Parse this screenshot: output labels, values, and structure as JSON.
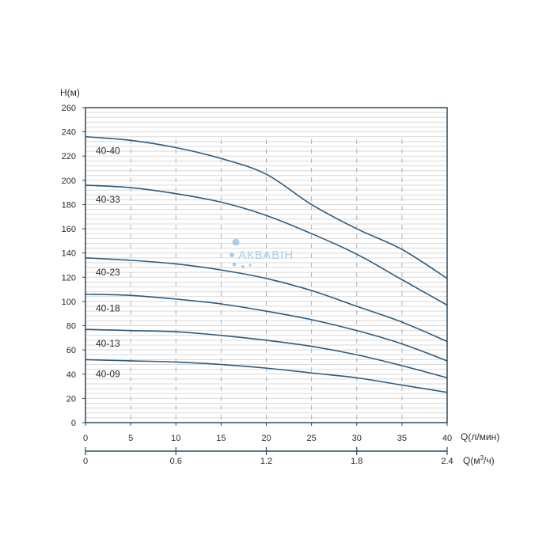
{
  "chart_data": {
    "type": "line",
    "ylabel": "H(м)",
    "xlabel": "Q(л/мин)",
    "xlabel2": "Q(м³/ч)",
    "xlabel2_base": "Q(м",
    "xlabel2_sup": "3",
    "xlabel2_tail": "/ч)",
    "xlim": [
      0,
      40
    ],
    "ylim": [
      0,
      260
    ],
    "x_ticks": [
      "0",
      "5",
      "10",
      "15",
      "20",
      "25",
      "30",
      "35",
      "40"
    ],
    "y_ticks": [
      "0",
      "20",
      "40",
      "60",
      "80",
      "100",
      "120",
      "140",
      "160",
      "180",
      "200",
      "220",
      "240",
      "260"
    ],
    "x2_ticks": [
      {
        "q": 0,
        "label": "0"
      },
      {
        "q": 10,
        "label": "0.6"
      },
      {
        "q": 20,
        "label": "1.2"
      },
      {
        "q": 30,
        "label": "1.8"
      },
      {
        "q": 40,
        "label": "2.4"
      }
    ],
    "grid": {
      "horizontal_minor_step": 4,
      "vertical_dashed": true
    },
    "x": [
      0,
      5,
      10,
      15,
      20,
      25,
      30,
      35,
      40
    ],
    "series": [
      {
        "name": "40-40",
        "values": [
          236,
          233,
          227,
          218,
          205,
          180,
          160,
          143,
          119
        ]
      },
      {
        "name": "40-33",
        "values": [
          196,
          194,
          189,
          182,
          171,
          156,
          139,
          118,
          97
        ]
      },
      {
        "name": "40-23",
        "values": [
          136,
          134,
          131,
          126,
          119,
          109,
          96,
          83,
          67
        ]
      },
      {
        "name": "40-18",
        "values": [
          106,
          105,
          102,
          98,
          92,
          85,
          76,
          65,
          51
        ]
      },
      {
        "name": "40-13",
        "values": [
          77,
          76,
          75,
          72,
          68,
          63,
          56,
          47,
          37
        ]
      },
      {
        "name": "40-09",
        "values": [
          52,
          51,
          50,
          48,
          45,
          41,
          37,
          31,
          25
        ]
      }
    ],
    "line_color": "#2d5b7e",
    "grid_color": "#d9d9d9",
    "dashed_grid_color": "#b0b0b0",
    "axis_color": "#2e4a5c"
  },
  "watermark": {
    "text": "АКВАВІН",
    "color": "#9ec6e6"
  }
}
